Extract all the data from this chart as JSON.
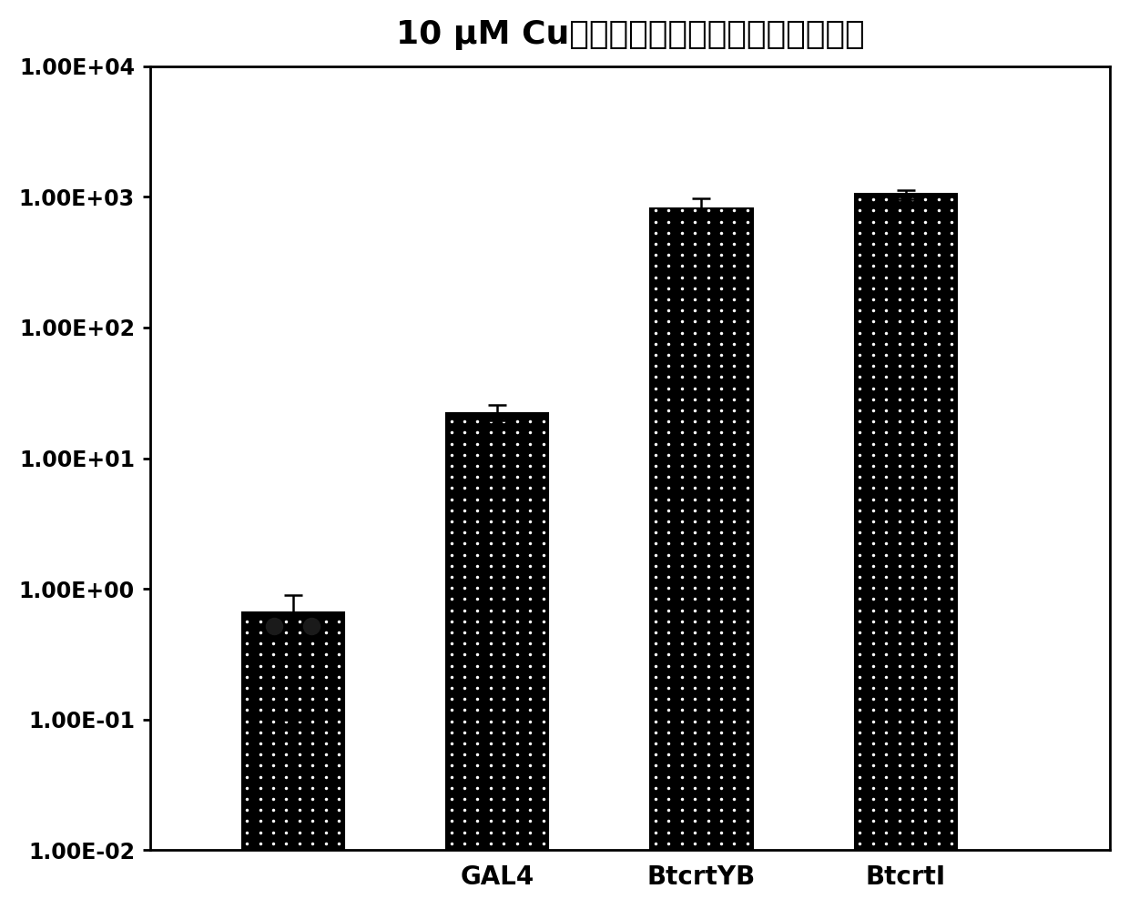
{
  "title": "10 μM Cu离子诱导条件下基因转录水平变化",
  "categories": [
    "",
    "GAL4",
    "BtcrtYB",
    "BtcrtI"
  ],
  "values": [
    0.65,
    22.0,
    820.0,
    1050.0
  ],
  "errors_low": [
    0.55,
    2.5,
    120.0,
    90.0
  ],
  "errors_high": [
    0.25,
    3.5,
    150.0,
    80.0
  ],
  "ylim_low": 0.01,
  "ylim_high": 10000,
  "bar_color": "#000000",
  "bg_color": "#ffffff",
  "title_fontsize": 26,
  "tick_fontsize": 17,
  "label_fontsize": 20,
  "bar_width": 0.5,
  "x_positions": [
    1,
    2,
    3,
    4
  ],
  "xlim": [
    0.3,
    5.0
  ]
}
